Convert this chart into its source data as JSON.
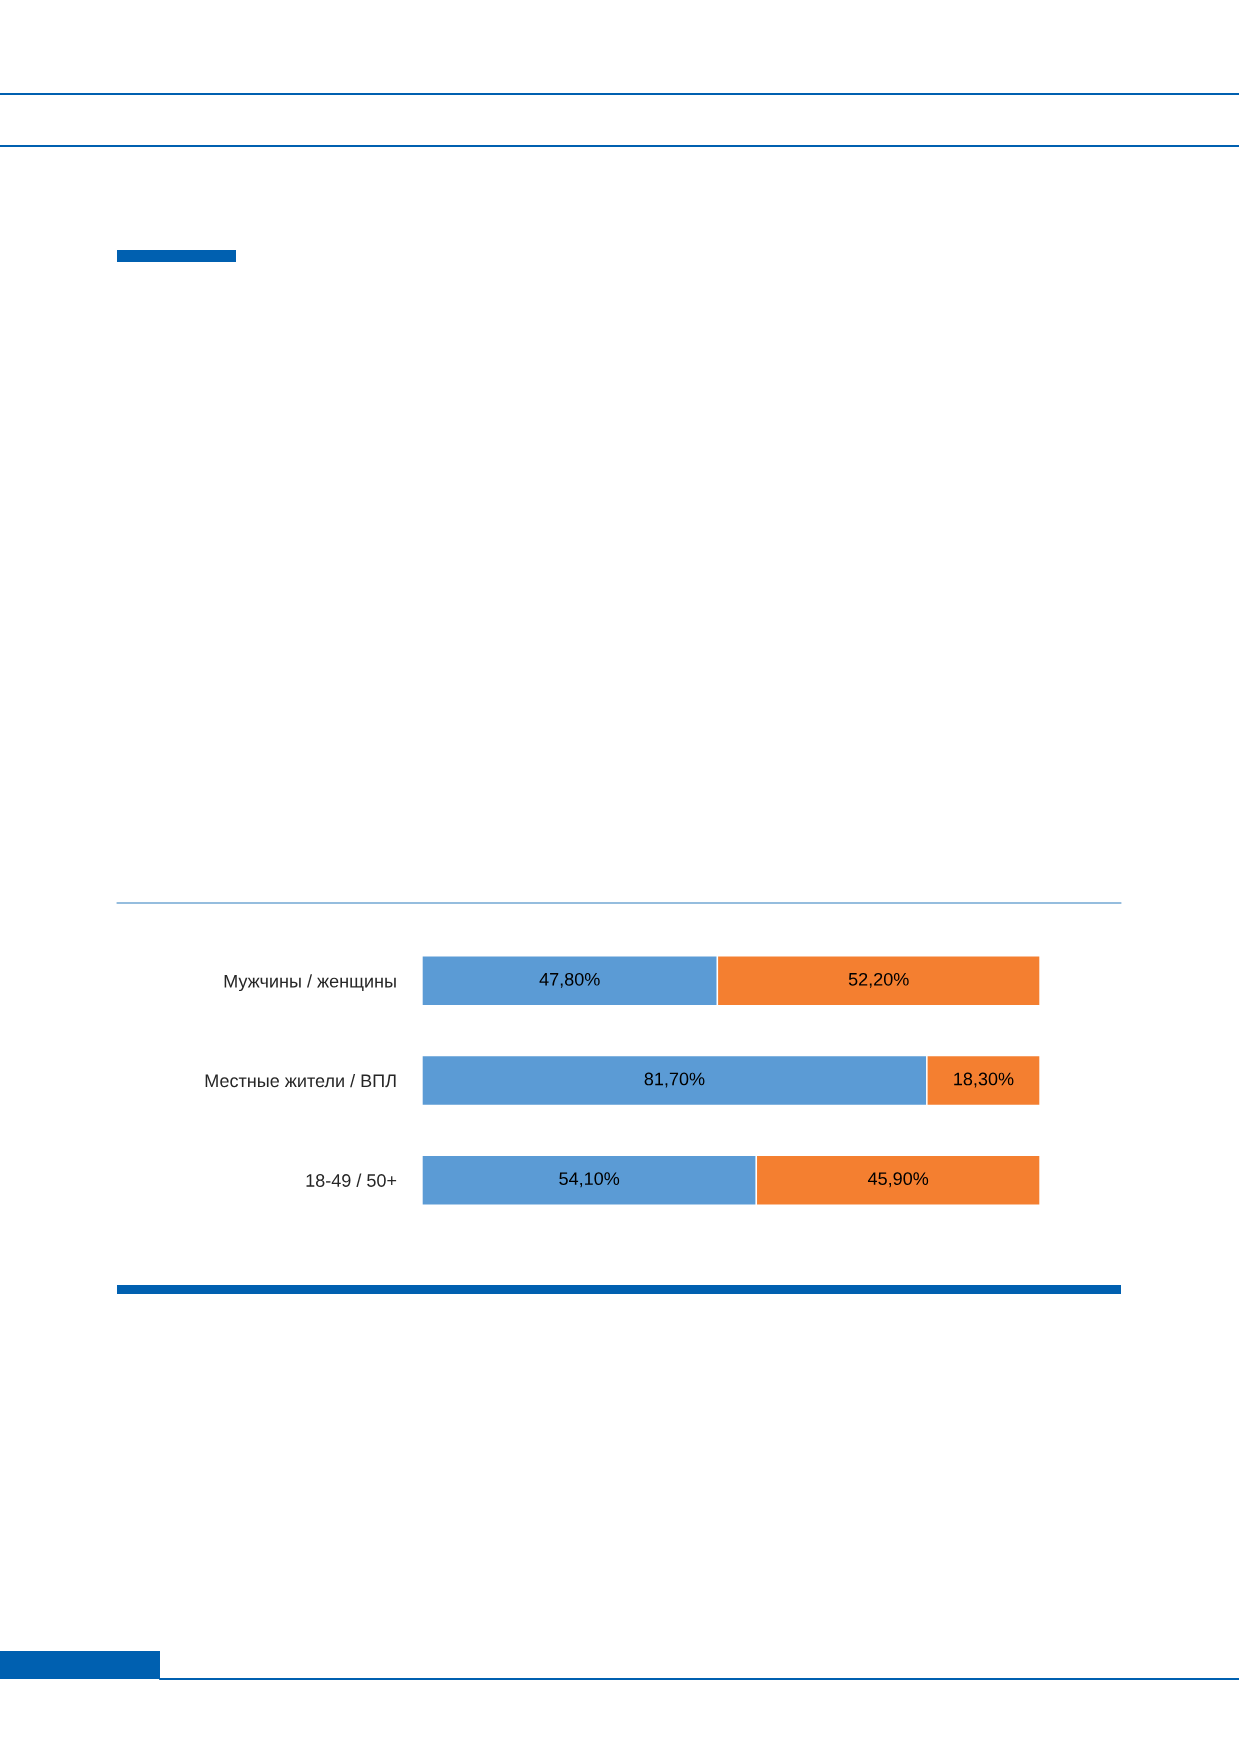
{
  "chart_data": {
    "type": "bar",
    "orientation": "horizontal",
    "stacked": true,
    "categories": [
      "Мужчины / женщины",
      "Местные жители / ВПЛ",
      "18-49 / 50+"
    ],
    "series": [
      {
        "color": "#5b9bd5",
        "values": [
          47.8,
          81.7,
          54.1
        ],
        "value_labels": [
          "47,80%",
          "81,70%",
          "54,10%"
        ]
      },
      {
        "color": "#f47f30",
        "values": [
          52.2,
          18.3,
          45.9
        ],
        "value_labels": [
          "52,20%",
          "18,30%",
          "45,90%"
        ]
      }
    ],
    "xlim": [
      0,
      100
    ],
    "tick_labels": "y",
    "legend": false
  }
}
